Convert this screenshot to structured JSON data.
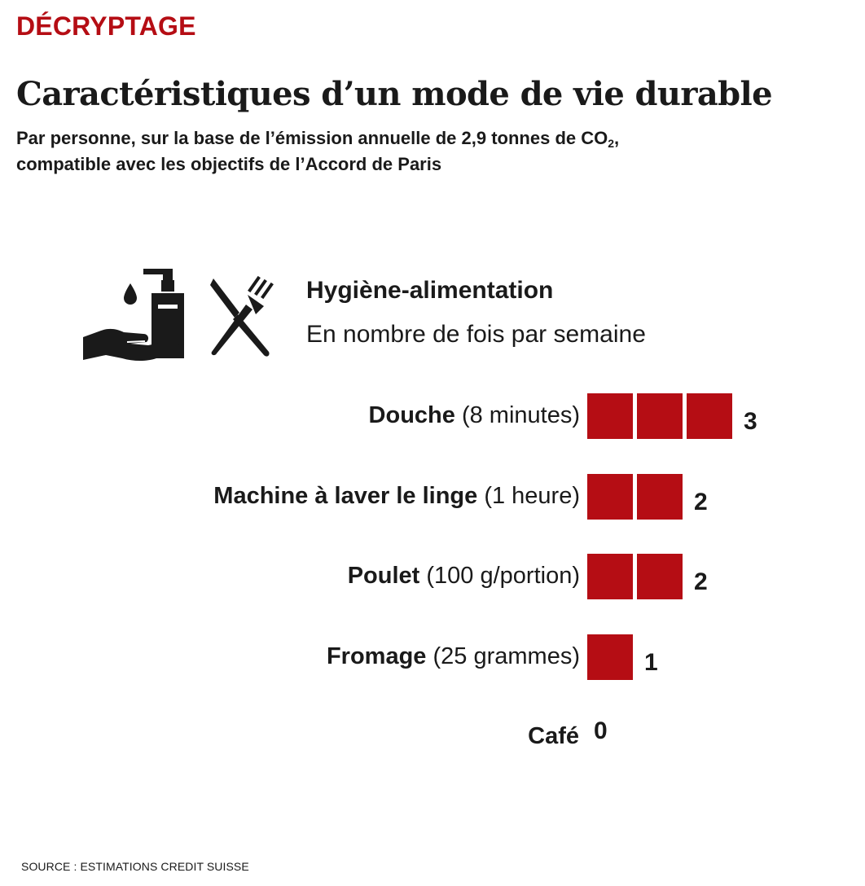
{
  "kicker": "DÉCRYPTAGE",
  "title": "Caractéristiques d’un mode de vie durable",
  "subtitle": {
    "line1": "Par personne, sur la base de l’émission annuelle de 2,9 tonnes de CO",
    "sub": "2",
    "line1_end": ",",
    "line2": "compatible avec les objectifs de l’Accord de Paris"
  },
  "icons": [
    "hand-soap-icon",
    "fork-knife-icon"
  ],
  "colors": {
    "kicker": "#b50d14",
    "bar": "#b50d14",
    "text": "#1a1a1a"
  },
  "source": "SOURCE : ESTIMATIONS CREDIT SUISSE",
  "chart_data": {
    "type": "bar",
    "orientation": "horizontal",
    "title": "Hygiène-alimentation",
    "subtitle": "En nombre de fois par semaine",
    "categories": [
      {
        "name": "Douche",
        "detail": "(8 minutes)"
      },
      {
        "name": "Machine à laver le linge",
        "detail": "(1 heure)"
      },
      {
        "name": "Poulet",
        "detail": "(100 g/portion)"
      },
      {
        "name": "Fromage",
        "detail": "(25 grammes)"
      },
      {
        "name": "Café",
        "detail": ""
      }
    ],
    "values": [
      3,
      2,
      2,
      1,
      0
    ],
    "value_labels": [
      "3",
      "2",
      "2",
      "1",
      "0"
    ],
    "unit_mark": "one square = 1 time per week",
    "grid": false,
    "legend": "none"
  }
}
